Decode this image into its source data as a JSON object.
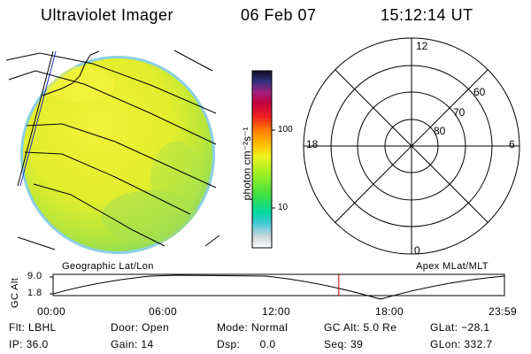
{
  "header": {
    "instrument": "Ultraviolet Imager",
    "date": "06 Feb 07",
    "time": "15:12:14 UT"
  },
  "colorbar": {
    "unit_label": "photon cm⁻²s⁻¹",
    "ticks": [
      "100",
      "10"
    ]
  },
  "image_panel": {
    "caption": "Geographic Lat/Lon",
    "dominant_color": "#e6f02a"
  },
  "polar_panel": {
    "caption": "Apex MLat/MLT",
    "mlt_labels": {
      "top": "12",
      "bottom": "0",
      "left": "18",
      "right": "6"
    },
    "mlat_labels": [
      "60",
      "70",
      "80"
    ]
  },
  "timeline": {
    "ylabel": "GC Alt",
    "y_ticks": [
      "9.0",
      "1.8"
    ],
    "time_labels": [
      "00:00",
      "06:00",
      "12:00",
      "18:00",
      "23:59"
    ],
    "current_time_fraction": 0.633,
    "marker_color": "#cc0000"
  },
  "info": {
    "flt": "Flt: LBHL",
    "ip": "IP: 36.0",
    "door": "Door: Open",
    "gain": "Gain: 14",
    "mode": "Mode: Normal",
    "dsp": "Dsp:      0.0",
    "gc_alt": "GC Alt: 5.0 Re",
    "seq": "Seq: 39",
    "glat": "GLat: −28.1",
    "glon": "GLon: 332.7"
  }
}
